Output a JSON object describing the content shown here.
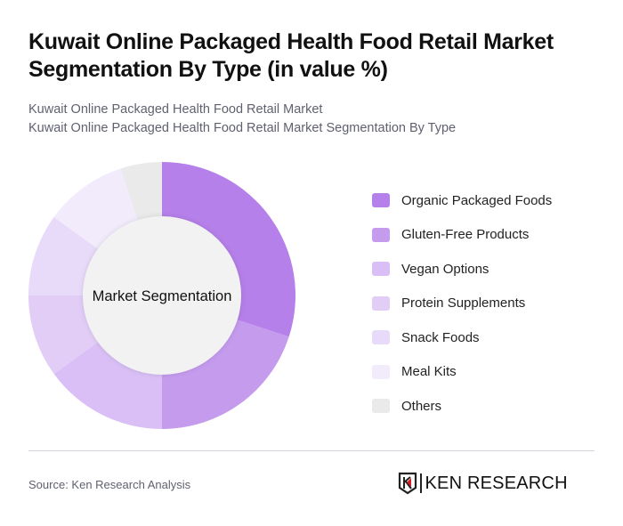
{
  "header": {
    "title": "Kuwait Online Packaged Health Food Retail Market Segmentation By Type (in value %)",
    "subtitle_line1": "Kuwait Online Packaged Health Food Retail Market",
    "subtitle_line2": "Kuwait Online Packaged Health Food Retail Market Segmentation By Type"
  },
  "chart_data": {
    "type": "pie",
    "variant": "donut",
    "title": "Kuwait Online Packaged Health Food Retail Market Segmentation By Type (in value %)",
    "center_label": "Market Segmentation",
    "categories": [
      "Organic Packaged Foods",
      "Gluten-Free Products",
      "Vegan Options",
      "Protein Supplements",
      "Snack Foods",
      "Meal Kits",
      "Others"
    ],
    "values": [
      30,
      20,
      15,
      10,
      10,
      10,
      5
    ],
    "unit": "%",
    "colors": [
      "#b580e9",
      "#c59bee",
      "#d9bff5",
      "#e2cdf7",
      "#e8dbf9",
      "#f2ebfc",
      "#eaeaea"
    ],
    "legend_position": "right"
  },
  "legend": {
    "items": [
      {
        "label": "Organic Packaged Foods",
        "color": "#b580e9"
      },
      {
        "label": "Gluten-Free Products",
        "color": "#c59bee"
      },
      {
        "label": "Vegan Options",
        "color": "#d9bff5"
      },
      {
        "label": "Protein Supplements",
        "color": "#e2cdf7"
      },
      {
        "label": "Snack Foods",
        "color": "#e8dbf9"
      },
      {
        "label": "Meal Kits",
        "color": "#f2ebfc"
      },
      {
        "label": "Others",
        "color": "#eaeaea"
      }
    ]
  },
  "footer": {
    "source": "Source: Ken Research Analysis",
    "logo_text": "KEN RESEARCH",
    "logo_accent": "#d0202a"
  }
}
